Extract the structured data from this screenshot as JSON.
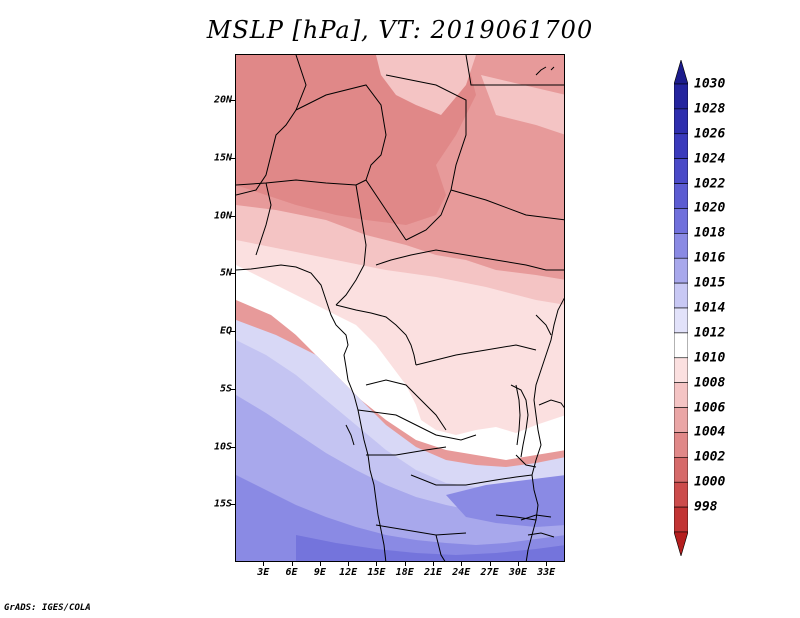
{
  "title": "MSLP [hPa], VT: 2019061700",
  "credit": "GrADS: IGES/COLA",
  "map": {
    "projection": "latlon",
    "lon_range": [
      0,
      35
    ],
    "lat_range": [
      -20,
      24
    ],
    "lat_ticks": [
      {
        "value": 20,
        "label": "20N"
      },
      {
        "value": 15,
        "label": "15N"
      },
      {
        "value": 10,
        "label": "10N"
      },
      {
        "value": 5,
        "label": "5N"
      },
      {
        "value": 0,
        "label": "EQ"
      },
      {
        "value": -5,
        "label": "5S"
      },
      {
        "value": -10,
        "label": "10S"
      },
      {
        "value": -15,
        "label": "15S"
      }
    ],
    "lon_ticks": [
      {
        "value": 3,
        "label": "3E"
      },
      {
        "value": 6,
        "label": "6E"
      },
      {
        "value": 9,
        "label": "9E"
      },
      {
        "value": 12,
        "label": "12E"
      },
      {
        "value": 15,
        "label": "15E"
      },
      {
        "value": 18,
        "label": "18E"
      },
      {
        "value": 21,
        "label": "21E"
      },
      {
        "value": 24,
        "label": "24E"
      },
      {
        "value": 27,
        "label": "27E"
      },
      {
        "value": 30,
        "label": "30E"
      },
      {
        "value": 33,
        "label": "33E"
      }
    ]
  },
  "colorbar": {
    "labels": [
      "1030",
      "1028",
      "1026",
      "1024",
      "1022",
      "1020",
      "1018",
      "1016",
      "1015",
      "1014",
      "1012",
      "1010",
      "1008",
      "1006",
      "1004",
      "1002",
      "1000",
      "998"
    ],
    "colors": [
      "#1c1c8c",
      "#24249e",
      "#2e2eae",
      "#3a3abc",
      "#4a4ac8",
      "#5c5cd2",
      "#7070dc",
      "#8a8ae4",
      "#a8a8ec",
      "#c8c8f4",
      "#e2e2fa",
      "#ffffff",
      "#fbe0e0",
      "#f4c4c4",
      "#eaa6a6",
      "#e08888",
      "#d66a6a",
      "#cc4c4c",
      "#c23434",
      "#b41e1e"
    ]
  },
  "field_colors": {
    "p998": "#b41e1e",
    "p1006": "#e08888",
    "p1008": "#e79a9a",
    "p1010": "#f4c4c4",
    "p1012": "#fbe0e0",
    "p1014": "#ffffff",
    "p1015": "#d8d8f6",
    "p1016": "#c4c4f2",
    "p1018": "#a8a8ec",
    "p1020": "#8a8ae4",
    "p1022": "#7474dc"
  }
}
